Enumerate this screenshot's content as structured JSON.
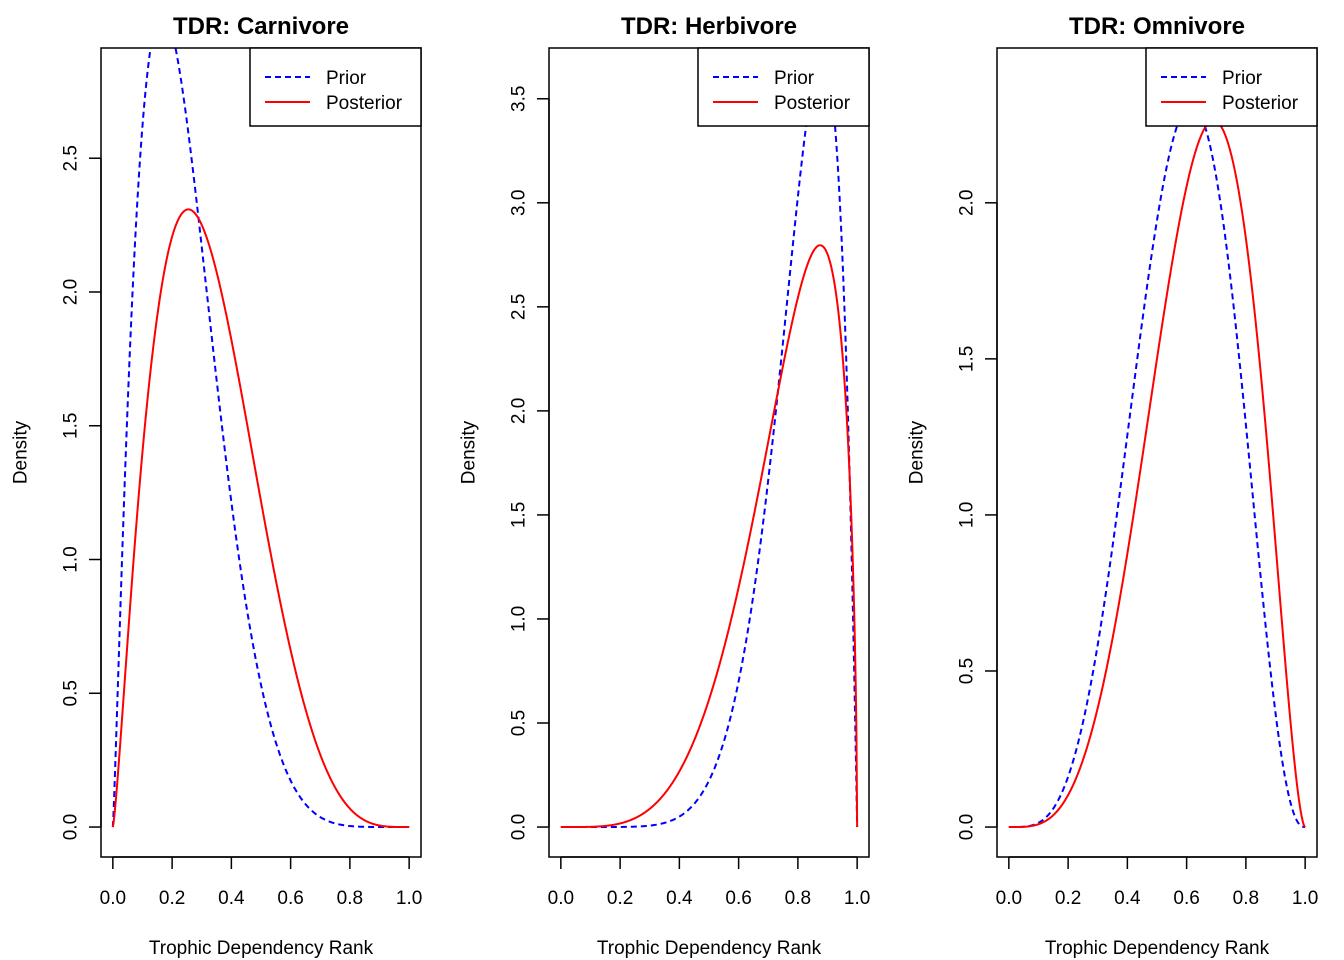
{
  "chart_data": [
    {
      "type": "line",
      "title": "TDR: Carnivore",
      "xlabel": "Trophic Dependency Rank",
      "ylabel": "Density",
      "xlim": [
        0,
        1
      ],
      "ylim": [
        0,
        2.8
      ],
      "xticks": [
        "0.0",
        "0.2",
        "0.4",
        "0.6",
        "0.8",
        "1.0"
      ],
      "yticks": [
        "0.0",
        "0.5",
        "1.0",
        "1.5",
        "2.0",
        "2.5"
      ],
      "legend": [
        "Prior",
        "Posterior"
      ],
      "legend_position": "top-right",
      "series": [
        {
          "name": "Prior",
          "color": "#0000ff",
          "style": "dashed",
          "dist": "beta",
          "alpha": 2.2,
          "beta": 7.0
        },
        {
          "name": "Posterior",
          "color": "#ff0000",
          "style": "solid",
          "dist": "beta",
          "alpha": 2.3,
          "beta": 4.8
        }
      ]
    },
    {
      "type": "line",
      "title": "TDR: Herbivore",
      "xlabel": "Trophic Dependency Rank",
      "ylabel": "Density",
      "xlim": [
        0,
        1
      ],
      "ylim": [
        0,
        3.6
      ],
      "xticks": [
        "0.0",
        "0.2",
        "0.4",
        "0.6",
        "0.8",
        "1.0"
      ],
      "yticks": [
        "0.0",
        "0.5",
        "1.0",
        "1.5",
        "2.0",
        "2.5",
        "3.0",
        "3.5"
      ],
      "legend": [
        "Prior",
        "Posterior"
      ],
      "legend_position": "top-right",
      "series": [
        {
          "name": "Prior",
          "color": "#0000ff",
          "style": "dashed",
          "dist": "beta",
          "alpha": 8.5,
          "beta": 2.0
        },
        {
          "name": "Posterior",
          "color": "#ff0000",
          "style": "solid",
          "dist": "beta",
          "alpha": 5.2,
          "beta": 1.6
        }
      ]
    },
    {
      "type": "line",
      "title": "TDR: Omnivore",
      "xlabel": "Trophic Dependency Rank",
      "ylabel": "Density",
      "xlim": [
        0,
        1
      ],
      "ylim": [
        0,
        2.4
      ],
      "xticks": [
        "0.0",
        "0.2",
        "0.4",
        "0.6",
        "0.8",
        "1.0"
      ],
      "yticks": [
        "0.0",
        "0.5",
        "1.0",
        "1.5",
        "2.0"
      ],
      "legend": [
        "Prior",
        "Posterior"
      ],
      "legend_position": "top-right",
      "series": [
        {
          "name": "Prior",
          "color": "#0000ff",
          "style": "dashed",
          "dist": "beta",
          "alpha": 5.0,
          "beta": 3.5
        },
        {
          "name": "Posterior",
          "color": "#ff0000",
          "style": "solid",
          "dist": "beta",
          "alpha": 4.8,
          "beta": 2.7
        }
      ]
    }
  ]
}
